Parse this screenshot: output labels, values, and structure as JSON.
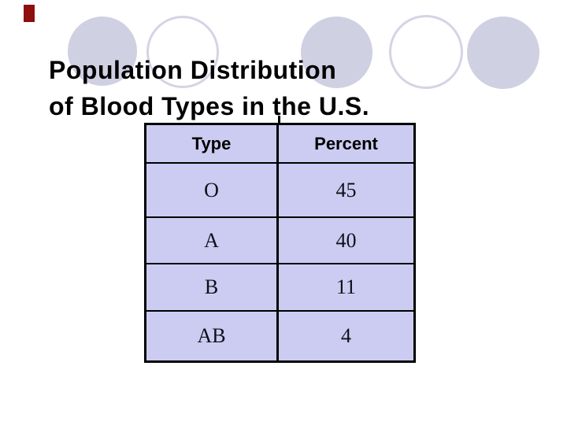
{
  "title": {
    "line1": "Population Distribution",
    "line2": "of Blood Types in the U.S."
  },
  "table": {
    "headers": [
      "Type",
      "Percent"
    ],
    "rows": [
      [
        "O",
        "45"
      ],
      [
        "A",
        "40"
      ],
      [
        "B",
        "11"
      ],
      [
        "AB",
        "4"
      ]
    ]
  },
  "chart_data": {
    "type": "table",
    "title": "Population Distribution of Blood Types in the U.S.",
    "columns": [
      "Type",
      "Percent"
    ],
    "categories": [
      "O",
      "A",
      "B",
      "AB"
    ],
    "values": [
      45,
      40,
      11,
      4
    ]
  },
  "colors": {
    "accent_bar": "#8f0e0e",
    "circle_fill": "#d0d0e3",
    "circle_ring": "#d4d4e6",
    "table_fill": "#ccccf2",
    "grid_line": "#000000"
  }
}
